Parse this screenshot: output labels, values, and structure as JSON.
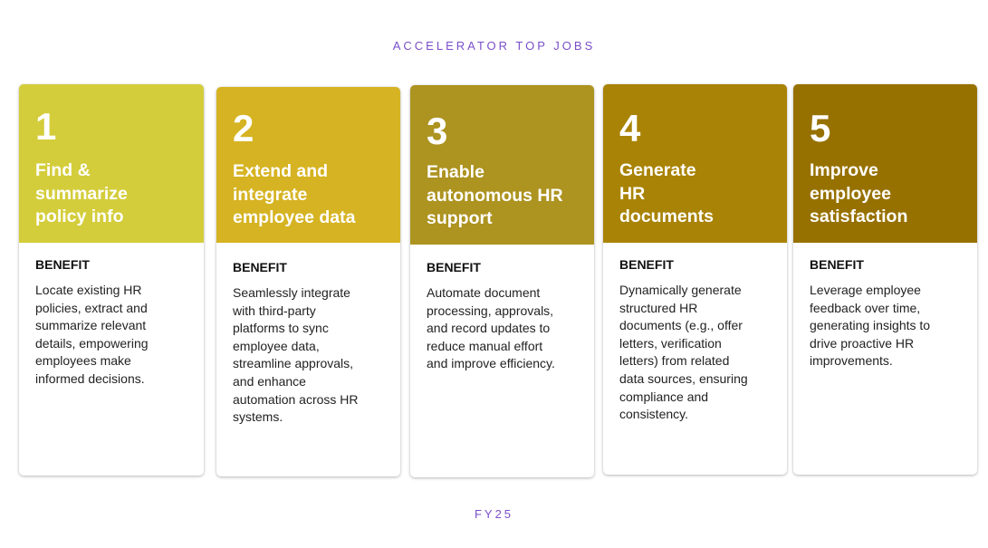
{
  "heading": "ACCELERATOR TOP JOBS",
  "footer": "FY25",
  "cards": [
    {
      "number": "1",
      "title": "Find &\nsummarize\npolicy info",
      "benefit_label": "BENEFIT",
      "benefit_text": "Locate existing HR\npolicies, extract and\nsummarize relevant\ndetails, empowering\nemployees make\ninformed decisions.",
      "color": "#d4cd3b"
    },
    {
      "number": "2",
      "title": "Extend and\nintegrate\nemployee data",
      "benefit_label": "BENEFIT",
      "benefit_text": "Seamlessly integrate\nwith third-party\nplatforms to sync\nemployee data,\nstreamline approvals,\nand enhance\nautomation across HR\nsystems.",
      "color": "#d6b322"
    },
    {
      "number": "3",
      "title": "Enable\nautonomous HR\nsupport",
      "benefit_label": "BENEFIT",
      "benefit_text": "Automate document\nprocessing, approvals,\nand record updates to\nreduce manual effort\nand improve efficiency.",
      "color": "#ad9320"
    },
    {
      "number": "4",
      "title": "Generate\nHR\ndocuments",
      "benefit_label": "BENEFIT",
      "benefit_text": "Dynamically generate\nstructured HR\ndocuments (e.g., offer\nletters, verification\nletters) from related\ndata sources, ensuring\ncompliance and\nconsistency.",
      "color": "#a98305"
    },
    {
      "number": "5",
      "title": "Improve\nemployee\nsatisfaction",
      "benefit_label": "BENEFIT",
      "benefit_text": "Leverage employee\nfeedback over time,\ngenerating insights to\ndrive proactive HR\nimprovements.",
      "color": "#977100"
    }
  ]
}
